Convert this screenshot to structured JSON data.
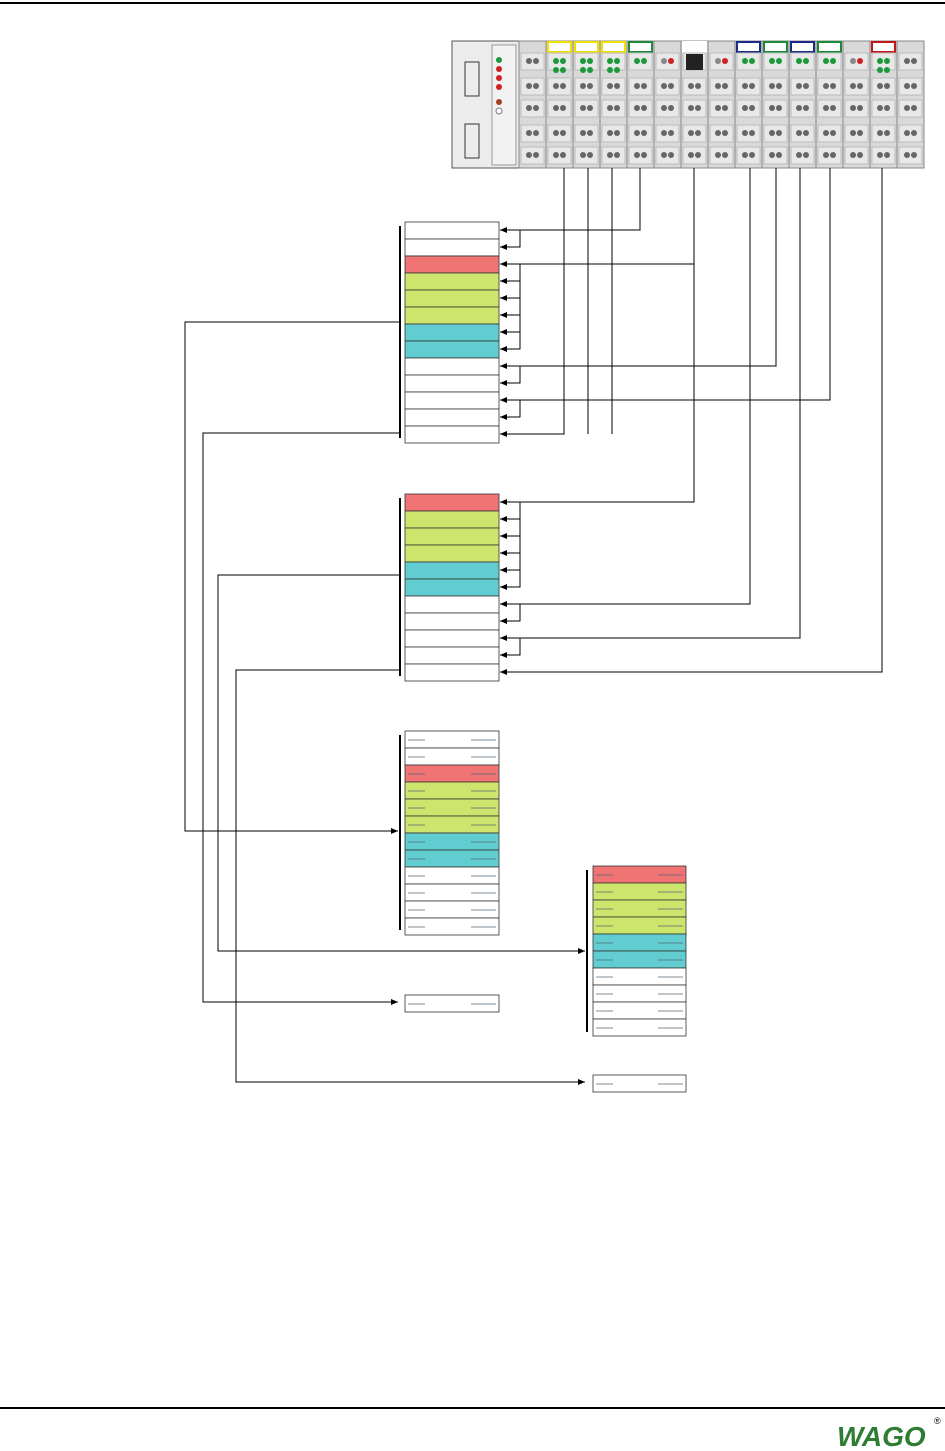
{
  "footer": {
    "logo": "WAGO",
    "mark": "®"
  }
}
